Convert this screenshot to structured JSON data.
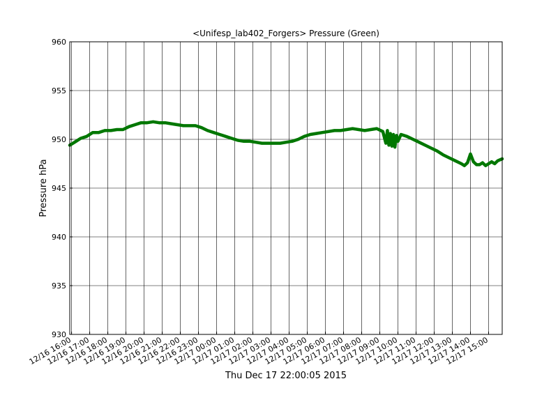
{
  "chart_data": {
    "type": "line",
    "title": "<Unifesp_lab402_Forgers> Pressure (Green)",
    "xlabel": "Thu Dec 17 22:00:05 2015",
    "ylabel": "Pressure hPa",
    "ylim": [
      930,
      960
    ],
    "yticks": [
      930,
      935,
      940,
      945,
      950,
      955,
      960
    ],
    "xlim": [
      "12/16 15:54",
      "12/17 15:45"
    ],
    "xticks": [
      "12/16 16:00",
      "12/16 17:00",
      "12/16 18:00",
      "12/16 19:00",
      "12/16 20:00",
      "12/16 21:00",
      "12/16 22:00",
      "12/16 23:00",
      "12/17 00:00",
      "12/17 01:00",
      "12/17 02:00",
      "12/17 03:00",
      "12/17 04:00",
      "12/17 05:00",
      "12/17 06:00",
      "12/17 07:00",
      "12/17 08:00",
      "12/17 09:00",
      "12/17 10:00",
      "12/17 11:00",
      "12/17 12:00",
      "12/17 13:00",
      "12/17 14:00",
      "12/17 15:00"
    ],
    "grid": true,
    "line_color": "#007700",
    "series": [
      {
        "x": [
          "12/16 15:54",
          "12/16 16:10",
          "12/16 16:30",
          "12/16 16:50",
          "12/16 17:10",
          "12/16 17:30",
          "12/16 17:50",
          "12/16 18:10",
          "12/16 18:30",
          "12/16 18:50",
          "12/16 19:10",
          "12/16 19:30",
          "12/16 19:50",
          "12/16 20:10",
          "12/16 20:30",
          "12/16 20:50",
          "12/16 21:10",
          "12/16 21:30",
          "12/16 21:50",
          "12/16 22:10",
          "12/16 22:30",
          "12/16 22:50",
          "12/16 23:10",
          "12/16 23:30",
          "12/16 23:50",
          "12/17 00:10",
          "12/17 00:30",
          "12/17 00:50",
          "12/17 01:10",
          "12/17 01:30",
          "12/17 01:50",
          "12/17 02:10",
          "12/17 02:30",
          "12/17 02:50",
          "12/17 03:10",
          "12/17 03:30",
          "12/17 03:50",
          "12/17 04:10",
          "12/17 04:30",
          "12/17 04:50",
          "12/17 05:10",
          "12/17 05:30",
          "12/17 05:50",
          "12/17 06:10",
          "12/17 06:30",
          "12/17 06:50",
          "12/17 07:10",
          "12/17 07:30",
          "12/17 07:50",
          "12/17 08:10",
          "12/17 08:30",
          "12/17 08:50",
          "12/17 09:10",
          "12/17 09:20",
          "12/17 09:25",
          "12/17 09:30",
          "12/17 09:35",
          "12/17 09:40",
          "12/17 09:45",
          "12/17 09:50",
          "12/17 09:55",
          "12/17 10:00",
          "12/17 10:10",
          "12/17 10:30",
          "12/17 10:50",
          "12/17 11:10",
          "12/17 11:30",
          "12/17 11:50",
          "12/17 12:10",
          "12/17 12:30",
          "12/17 12:50",
          "12/17 13:10",
          "12/17 13:30",
          "12/17 13:40",
          "12/17 13:50",
          "12/17 14:00",
          "12/17 14:10",
          "12/17 14:20",
          "12/17 14:30",
          "12/17 14:40",
          "12/17 14:50",
          "12/17 15:00",
          "12/17 15:10",
          "12/17 15:20",
          "12/17 15:30",
          "12/17 15:45"
        ],
        "y": [
          949.4,
          949.7,
          950.1,
          950.3,
          950.7,
          950.7,
          950.9,
          950.9,
          951.0,
          951.0,
          951.3,
          951.5,
          951.7,
          951.7,
          951.8,
          951.7,
          951.7,
          951.6,
          951.5,
          951.4,
          951.4,
          951.4,
          951.2,
          950.9,
          950.7,
          950.5,
          950.3,
          950.1,
          949.9,
          949.8,
          949.8,
          949.7,
          949.6,
          949.6,
          949.6,
          949.6,
          949.7,
          949.8,
          950.0,
          950.3,
          950.5,
          950.6,
          950.7,
          950.8,
          950.9,
          950.9,
          951.0,
          951.1,
          951.0,
          950.9,
          951.0,
          951.1,
          950.8,
          949.6,
          950.9,
          949.4,
          950.6,
          949.3,
          950.5,
          949.2,
          950.4,
          949.8,
          950.5,
          950.3,
          950.0,
          949.7,
          949.4,
          949.1,
          948.8,
          948.4,
          948.1,
          947.8,
          947.5,
          947.3,
          947.6,
          948.5,
          947.7,
          947.4,
          947.4,
          947.6,
          947.3,
          947.5,
          947.7,
          947.5,
          947.8,
          948.0
        ]
      }
    ]
  }
}
